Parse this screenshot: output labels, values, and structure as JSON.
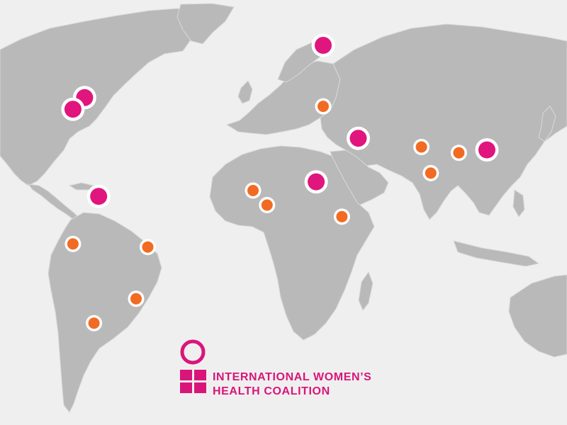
{
  "colors": {
    "ocean": "#efefef",
    "land": "#b9b9b9",
    "primary_marker": "#e0157d",
    "secondary_marker": "#f26b22",
    "marker_ring": "#ffffff",
    "brand": "#d9157a"
  },
  "markers": [
    {
      "name": "marker-russia",
      "kind": "primary",
      "lon": 30,
      "lat": 60
    },
    {
      "name": "marker-northeast-us",
      "kind": "primary",
      "lon": -72,
      "lat": 42
    },
    {
      "name": "marker-eastern-us",
      "kind": "primary",
      "lon": -77,
      "lat": 38
    },
    {
      "name": "marker-middle-east",
      "kind": "primary",
      "lon": 45,
      "lat": 28
    },
    {
      "name": "marker-china",
      "kind": "primary",
      "lon": 100,
      "lat": 24
    },
    {
      "name": "marker-sudan",
      "kind": "primary",
      "lon": 27,
      "lat": 13
    },
    {
      "name": "marker-venezuela",
      "kind": "primary",
      "lon": -66,
      "lat": 8
    },
    {
      "name": "marker-turkey",
      "kind": "secondary",
      "lon": 30,
      "lat": 39
    },
    {
      "name": "marker-pakistan",
      "kind": "secondary",
      "lon": 72,
      "lat": 25
    },
    {
      "name": "marker-bangladesh",
      "kind": "secondary",
      "lon": 88,
      "lat": 23
    },
    {
      "name": "marker-india",
      "kind": "secondary",
      "lon": 76,
      "lat": 16
    },
    {
      "name": "marker-west-africa",
      "kind": "secondary",
      "lon": 0,
      "lat": 10
    },
    {
      "name": "marker-nigeria",
      "kind": "secondary",
      "lon": 6,
      "lat": 5
    },
    {
      "name": "marker-east-africa",
      "kind": "secondary",
      "lon": 38,
      "lat": 1
    },
    {
      "name": "marker-peru",
      "kind": "secondary",
      "lon": -77,
      "lat": -8
    },
    {
      "name": "marker-brazil",
      "kind": "secondary",
      "lon": -45,
      "lat": -9
    },
    {
      "name": "marker-southern-brazil",
      "kind": "secondary",
      "lon": -50,
      "lat": -26
    },
    {
      "name": "marker-argentina",
      "kind": "secondary",
      "lon": -68,
      "lat": -34
    }
  ],
  "logo": {
    "line1": "INTERNATIONAL WOMEN’S",
    "line2": "HEALTH COALITION"
  }
}
